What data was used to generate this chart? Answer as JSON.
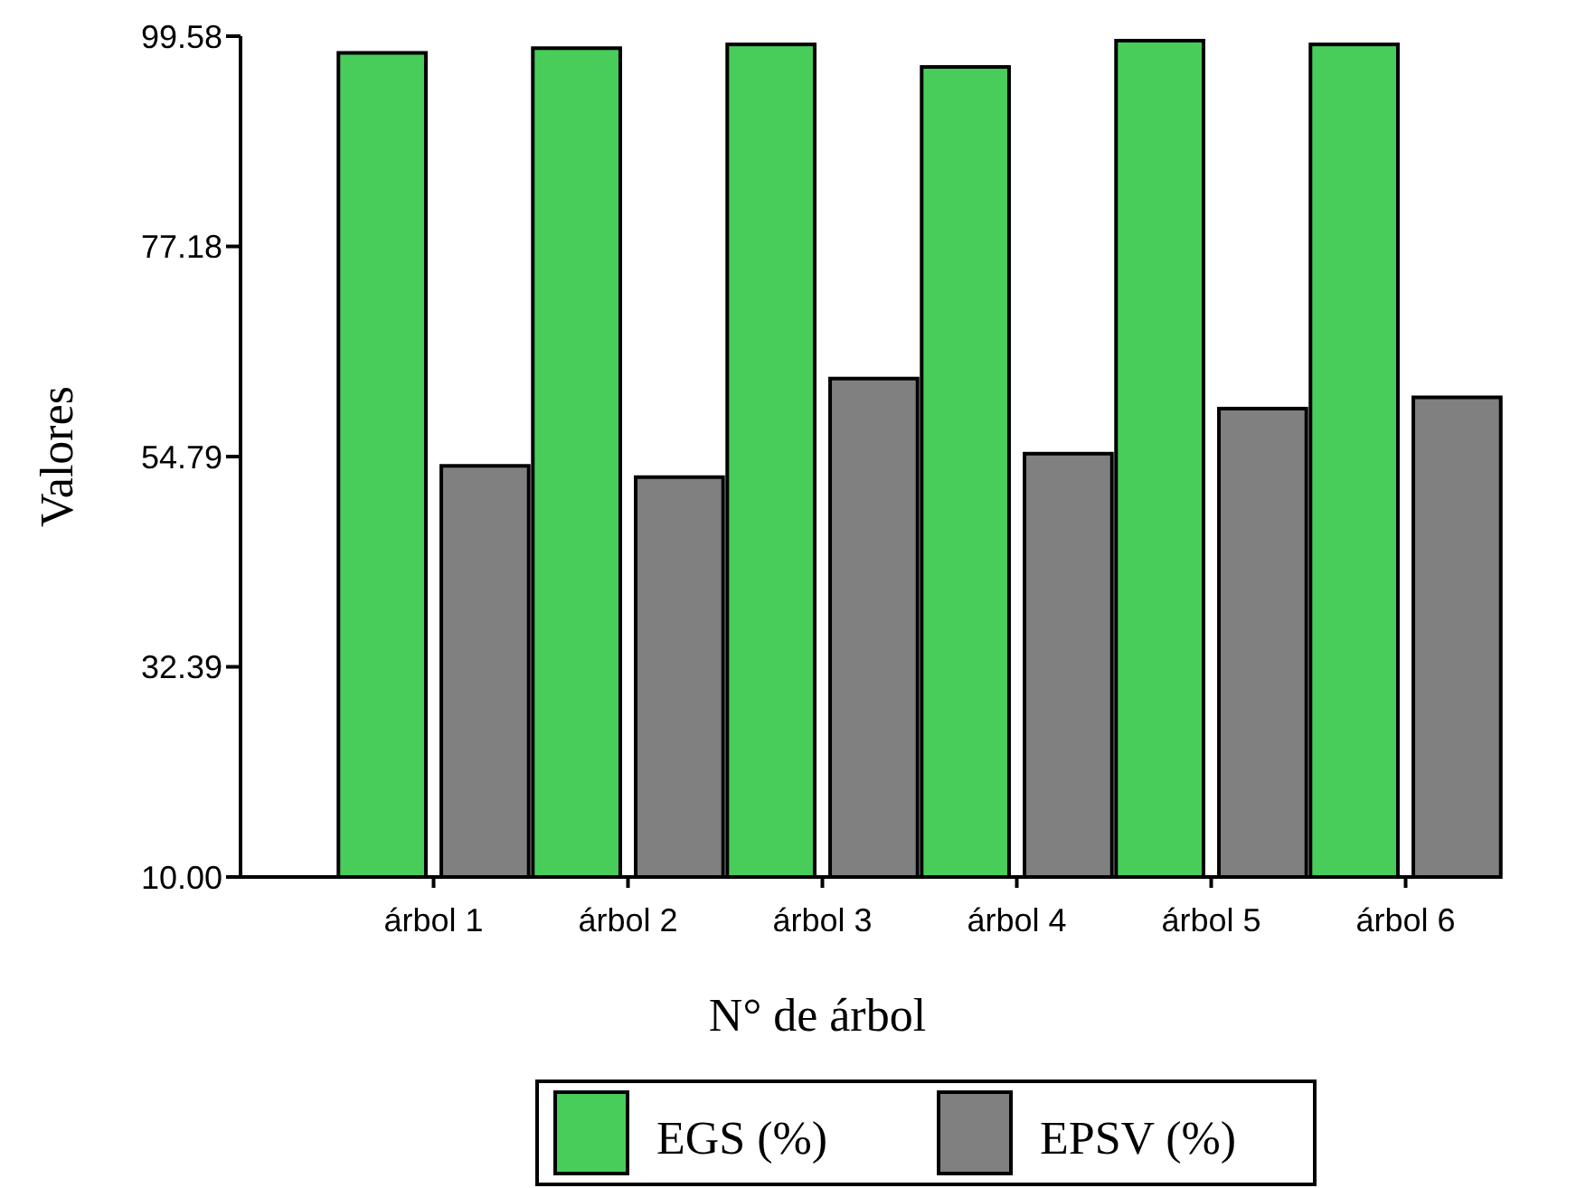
{
  "chart_data": {
    "type": "bar",
    "xlabel": "N° de árbol",
    "ylabel": "Valores",
    "categories": [
      "árbol 1",
      "árbol 2",
      "árbol 3",
      "árbol 4",
      "árbol 5",
      "árbol 6"
    ],
    "series": [
      {
        "name": "EGS (%)",
        "color": "#48cd5a",
        "values": [
          97.8,
          98.3,
          98.7,
          96.3,
          99.1,
          98.7
        ]
      },
      {
        "name": "EPSV (%)",
        "color": "#808080",
        "values": [
          53.8,
          52.6,
          63.1,
          55.1,
          59.9,
          61.1
        ]
      }
    ],
    "ylim": [
      10,
      99.58
    ],
    "yticks": [
      {
        "value": 10,
        "label": "10.00"
      },
      32.39,
      54.79,
      77.18,
      99.58
    ],
    "legend": "bottom"
  }
}
